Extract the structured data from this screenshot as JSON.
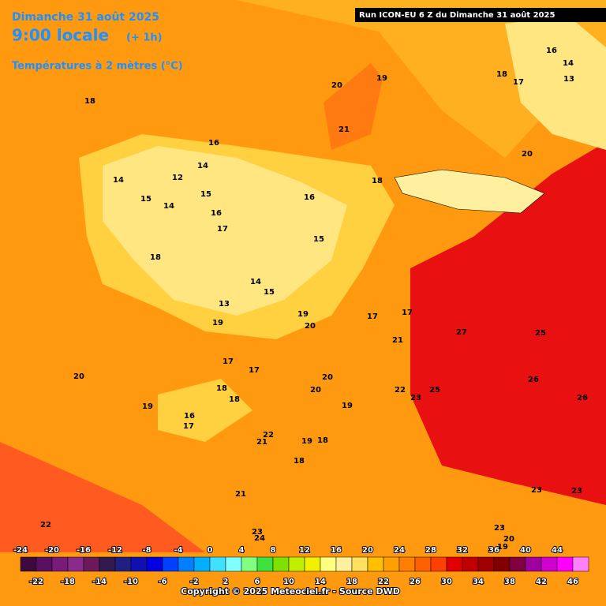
{
  "header": {
    "day": "Dimanche 31 août 2025",
    "time": "9:00 locale",
    "offset": "(+ 1h)",
    "field": "Températures à 2 mètres (°C)",
    "run": "Run ICON-EU 6 Z du Dimanche 31 août 2025"
  },
  "map_labels": [
    20,
    19,
    18,
    21,
    16,
    18,
    17,
    16,
    14,
    13,
    20,
    14,
    14,
    12,
    15,
    15,
    14,
    16,
    16,
    17,
    18,
    15,
    18,
    14,
    15,
    13,
    19,
    19,
    20,
    17,
    17,
    21,
    27,
    25,
    26,
    26,
    20,
    19,
    17,
    17,
    18,
    18,
    20,
    20,
    19,
    22,
    23,
    25,
    16,
    17,
    22,
    21,
    19,
    18,
    18,
    21,
    22,
    23,
    24,
    23,
    23,
    23,
    20,
    19
  ],
  "scale": {
    "ticks": [
      -24,
      -22,
      -20,
      -18,
      -16,
      -14,
      -12,
      -10,
      -8,
      -6,
      -4,
      -2,
      0,
      2,
      4,
      6,
      8,
      10,
      12,
      14,
      16,
      18,
      20,
      22,
      24,
      26,
      28,
      30,
      32,
      34,
      36,
      38,
      40,
      42,
      44,
      46
    ],
    "colors": [
      "#3c0a3c",
      "#5a1060",
      "#7a1a7a",
      "#8a2a8a",
      "#6a1a5a",
      "#301a50",
      "#202080",
      "#1010b0",
      "#0000e0",
      "#0040ff",
      "#0080ff",
      "#00b0ff",
      "#40e0ff",
      "#80ffff",
      "#80ff80",
      "#40e040",
      "#80e000",
      "#c0f000",
      "#f0f000",
      "#ffff80",
      "#fff0a0",
      "#ffe060",
      "#ffc000",
      "#ffa000",
      "#ff8000",
      "#ff6000",
      "#ff4000",
      "#e00000",
      "#c00000",
      "#a00000",
      "#800000",
      "#800040",
      "#a000a0",
      "#d000d0",
      "#ff00ff",
      "#ff80ff"
    ]
  },
  "footer": {
    "copyright": "Copyright © 2025 Meteociel.fr - Source DWD"
  }
}
